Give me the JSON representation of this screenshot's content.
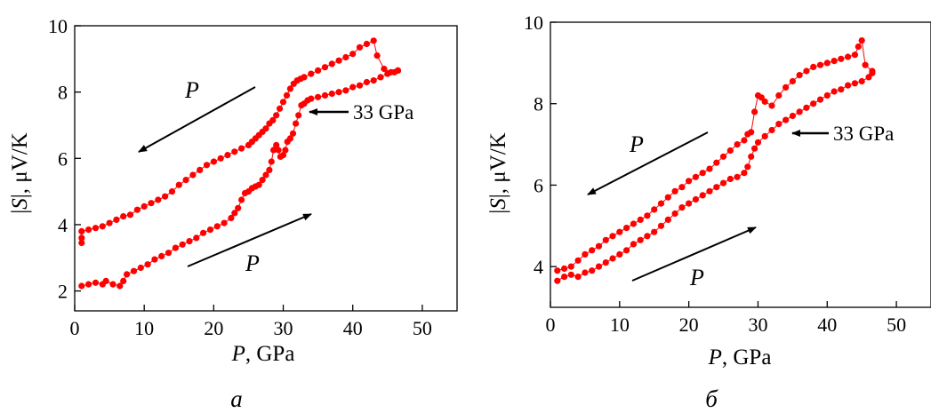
{
  "chart_data": [
    {
      "type": "scatter",
      "panel_label": "а",
      "xlabel_var": "P",
      "xlabel_unit": ", GPa",
      "ylabel_pre": "|",
      "ylabel_var": "S",
      "ylabel_post": "|, μV/K",
      "xlim": [
        0,
        55
      ],
      "ylim": [
        1.4,
        10
      ],
      "xticks": [
        0,
        10,
        20,
        30,
        40,
        50
      ],
      "yticks": [
        2,
        4,
        6,
        8,
        10
      ],
      "grid": false,
      "color": "#ff0000",
      "annotation": "33 GPa",
      "annotation_point": [
        33,
        7.3
      ],
      "increasing_label": "P",
      "decreasing_label": "P",
      "series": [
        {
          "x": [
            1.0,
            2.0,
            3.0,
            4.0,
            4.5,
            5.5,
            6.5,
            7.0,
            7.5,
            8.5,
            9.5,
            10.5,
            11.5,
            12.5,
            13.5,
            14.5,
            15.5,
            16.5,
            17.5,
            18.5,
            19.5,
            20.5,
            21.5,
            22.5,
            23.0,
            23.5,
            24.0,
            24.5,
            25.0,
            25.5,
            26.0,
            26.5,
            27.0,
            27.5,
            28.0,
            28.3,
            28.6,
            29.0,
            29.3,
            29.6,
            30.0,
            30.3,
            30.6,
            31.0,
            31.4,
            31.8,
            32.2,
            32.6,
            33.0,
            33.5,
            34.0,
            35.0,
            36.0,
            37.0,
            38.0,
            39.0,
            40.0,
            41.0,
            42.0,
            43.0,
            44.0,
            45.0,
            46.0,
            46.5
          ],
          "y": [
            2.15,
            2.2,
            2.25,
            2.2,
            2.3,
            2.2,
            2.15,
            2.3,
            2.5,
            2.6,
            2.7,
            2.8,
            2.95,
            3.05,
            3.15,
            3.3,
            3.4,
            3.5,
            3.6,
            3.75,
            3.85,
            3.95,
            4.05,
            4.2,
            4.35,
            4.5,
            4.75,
            4.95,
            5.0,
            5.1,
            5.15,
            5.2,
            5.35,
            5.5,
            5.65,
            5.9,
            6.25,
            6.4,
            6.25,
            6.05,
            6.1,
            6.25,
            6.5,
            6.6,
            6.75,
            7.05,
            7.3,
            7.6,
            7.65,
            7.75,
            7.8,
            7.85,
            7.9,
            7.95,
            8.0,
            8.05,
            8.15,
            8.2,
            8.3,
            8.35,
            8.45,
            8.55,
            8.6,
            8.65
          ]
        },
        {
          "x": [
            46.5,
            45.5,
            44.5,
            43.5,
            43.0,
            42.0,
            41.0,
            40.0,
            39.0,
            38.0,
            37.0,
            36.0,
            35.0,
            34.0,
            33.0,
            32.5,
            32.0,
            31.5,
            31.0,
            30.5,
            30.0,
            29.5,
            29.0,
            28.5,
            28.0,
            27.5,
            27.0,
            26.5,
            26.0,
            25.5,
            25.0,
            24.0,
            23.0,
            22.0,
            21.0,
            20.0,
            19.0,
            18.0,
            17.0,
            16.0,
            15.0,
            14.0,
            13.0,
            12.0,
            11.0,
            10.0,
            9.0,
            8.0,
            7.0,
            6.0,
            5.0,
            4.0,
            3.0,
            2.0,
            1.0,
            1.0,
            1.0
          ],
          "y": [
            8.65,
            8.6,
            8.7,
            9.1,
            9.55,
            9.45,
            9.35,
            9.15,
            9.05,
            8.95,
            8.85,
            8.75,
            8.65,
            8.55,
            8.45,
            8.4,
            8.35,
            8.25,
            8.1,
            7.9,
            7.7,
            7.5,
            7.3,
            7.15,
            7.05,
            6.9,
            6.8,
            6.7,
            6.6,
            6.5,
            6.4,
            6.3,
            6.2,
            6.1,
            6.0,
            5.9,
            5.8,
            5.65,
            5.5,
            5.35,
            5.2,
            5.0,
            4.85,
            4.75,
            4.65,
            4.55,
            4.45,
            4.3,
            4.25,
            4.15,
            4.05,
            3.95,
            3.9,
            3.85,
            3.8,
            3.6,
            3.45
          ]
        }
      ]
    },
    {
      "type": "scatter",
      "panel_label": "б",
      "xlabel_var": "P",
      "xlabel_unit": ", GPa",
      "ylabel_pre": "|",
      "ylabel_var": "S",
      "ylabel_post": "|, μV/K",
      "xlim": [
        0,
        55
      ],
      "ylim": [
        3.0,
        10
      ],
      "xticks": [
        0,
        10,
        20,
        30,
        40,
        50
      ],
      "yticks": [
        4,
        6,
        8,
        10
      ],
      "grid": false,
      "color": "#ff0000",
      "annotation": "33 GPa",
      "annotation_point": [
        33,
        7.35
      ],
      "increasing_label": "P",
      "decreasing_label": "P",
      "series": [
        {
          "x": [
            1.0,
            2.0,
            3.0,
            4.0,
            5.0,
            6.0,
            7.0,
            8.0,
            9.0,
            10.0,
            11.0,
            12.0,
            13.0,
            14.0,
            15.0,
            16.0,
            17.0,
            18.0,
            19.0,
            20.0,
            21.0,
            22.0,
            23.0,
            24.0,
            25.0,
            26.0,
            27.0,
            28.0,
            28.5,
            29.0,
            29.5,
            30.0,
            31.0,
            32.0,
            33.0,
            34.0,
            35.0,
            36.0,
            37.0,
            38.0,
            39.0,
            40.0,
            41.0,
            42.0,
            43.0,
            44.0,
            45.0,
            46.0,
            46.5
          ],
          "y": [
            3.65,
            3.75,
            3.8,
            3.75,
            3.85,
            3.9,
            4.0,
            4.1,
            4.2,
            4.3,
            4.4,
            4.55,
            4.65,
            4.75,
            4.85,
            5.0,
            5.15,
            5.3,
            5.45,
            5.55,
            5.65,
            5.75,
            5.85,
            5.95,
            6.05,
            6.15,
            6.2,
            6.3,
            6.45,
            6.7,
            6.9,
            7.05,
            7.2,
            7.35,
            7.5,
            7.6,
            7.7,
            7.8,
            7.9,
            8.0,
            8.1,
            8.2,
            8.3,
            8.35,
            8.45,
            8.5,
            8.55,
            8.65,
            8.75
          ]
        },
        {
          "x": [
            46.5,
            45.5,
            45.0,
            44.5,
            44.0,
            43.0,
            42.0,
            41.0,
            40.0,
            39.0,
            38.0,
            37.0,
            36.0,
            35.0,
            34.0,
            33.0,
            32.0,
            31.0,
            30.5,
            30.0,
            29.5,
            29.0,
            28.5,
            28.0,
            27.0,
            26.0,
            25.0,
            24.0,
            23.0,
            22.0,
            21.0,
            20.0,
            19.0,
            18.0,
            17.0,
            16.0,
            15.0,
            14.0,
            13.0,
            12.0,
            11.0,
            10.0,
            9.0,
            8.0,
            7.0,
            6.0,
            5.0,
            4.0,
            3.0,
            2.0,
            1.0
          ],
          "y": [
            8.8,
            8.95,
            9.55,
            9.4,
            9.2,
            9.15,
            9.1,
            9.05,
            9.0,
            8.95,
            8.9,
            8.8,
            8.7,
            8.55,
            8.4,
            8.2,
            7.95,
            8.05,
            8.15,
            8.2,
            7.8,
            7.3,
            7.25,
            7.1,
            7.0,
            6.85,
            6.7,
            6.55,
            6.4,
            6.3,
            6.2,
            6.1,
            5.95,
            5.85,
            5.7,
            5.55,
            5.4,
            5.25,
            5.15,
            5.05,
            4.95,
            4.85,
            4.75,
            4.65,
            4.5,
            4.4,
            4.3,
            4.15,
            4.0,
            3.95,
            3.9
          ]
        }
      ]
    }
  ]
}
